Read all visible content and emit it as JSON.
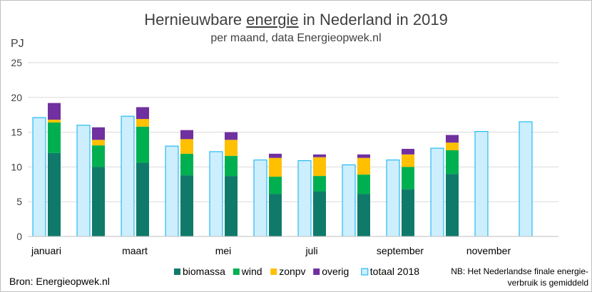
{
  "chart_data": {
    "type": "bar",
    "title_pre": "Hernieuwbare ",
    "title_under": "energie",
    "title_post": " in Nederland in 2019",
    "subtitle": "per maand, data Energieopwek.nl",
    "ylabel": "PJ",
    "ylim": [
      0,
      25
    ],
    "yticks": [
      0,
      5,
      10,
      15,
      20,
      25
    ],
    "grid": true,
    "legend_position": "bottom",
    "month_labels": [
      "januari",
      "",
      "maart",
      "",
      "mei",
      "",
      "juli",
      "",
      "september",
      "",
      "november",
      ""
    ],
    "series": [
      {
        "name": "biomassa",
        "color": "#0f7a6a",
        "values": [
          12.0,
          10.0,
          10.6,
          8.8,
          8.7,
          6.1,
          6.5,
          6.1,
          6.8,
          9.0,
          null,
          null
        ]
      },
      {
        "name": "wind",
        "color": "#00b050",
        "values": [
          4.4,
          3.1,
          5.2,
          3.1,
          2.9,
          2.5,
          2.2,
          2.8,
          3.2,
          3.4,
          null,
          null
        ]
      },
      {
        "name": "zonpv",
        "color": "#ffc000",
        "values": [
          0.4,
          0.8,
          1.1,
          2.1,
          2.3,
          2.7,
          2.7,
          2.4,
          1.8,
          1.1,
          null,
          null
        ]
      },
      {
        "name": "overig",
        "color": "#7030a0",
        "values": [
          2.4,
          1.8,
          1.7,
          1.3,
          1.1,
          0.6,
          0.4,
          0.5,
          0.8,
          1.1,
          null,
          null
        ]
      }
    ],
    "comparison": {
      "name": "totaal 2018",
      "fill": "#cdeefd",
      "stroke": "#00b0f0",
      "values": [
        17.1,
        16.0,
        17.3,
        13.0,
        12.2,
        11.0,
        10.9,
        10.3,
        11.0,
        12.7,
        15.1,
        16.5
      ]
    }
  },
  "source": "Bron: Energieopwek.nl",
  "note": "NB: Het Nederlandse finale energie- verbruik is gemiddeld"
}
